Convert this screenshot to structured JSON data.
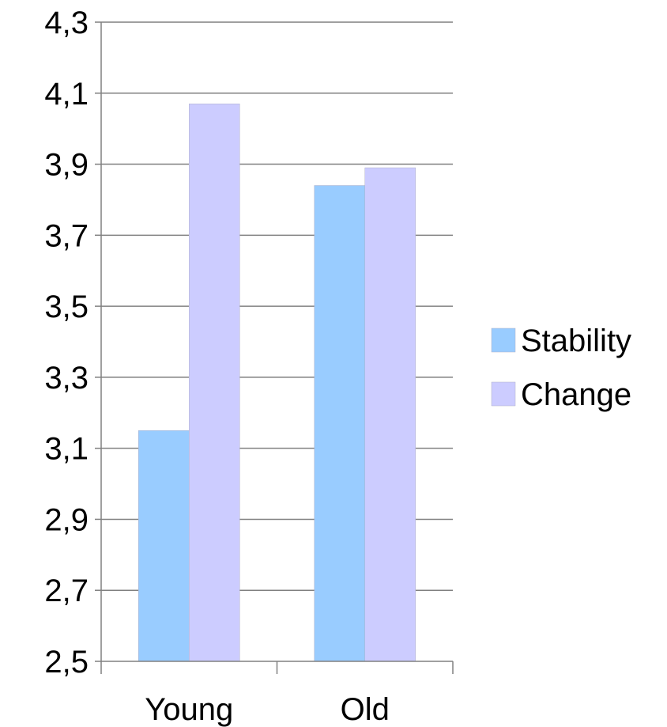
{
  "chart_data": {
    "type": "bar",
    "categories": [
      "Young",
      "Old"
    ],
    "series": [
      {
        "name": "Stability",
        "values": [
          3.15,
          3.84
        ],
        "color": "#99ccff"
      },
      {
        "name": "Change",
        "values": [
          4.07,
          3.89
        ],
        "color": "#ccccff"
      }
    ],
    "y_ticks": [
      "2,5",
      "2,7",
      "2,9",
      "3,1",
      "3,3",
      "3,5",
      "3,7",
      "3,9",
      "4,1",
      "4,3"
    ],
    "y_tick_values": [
      2.5,
      2.7,
      2.9,
      3.1,
      3.3,
      3.5,
      3.7,
      3.9,
      4.1,
      4.3
    ],
    "ylim": [
      2.5,
      4.3
    ],
    "grid": true,
    "grid_color": "#808080",
    "legend_position": "right",
    "title": "",
    "xlabel": "",
    "ylabel": ""
  }
}
